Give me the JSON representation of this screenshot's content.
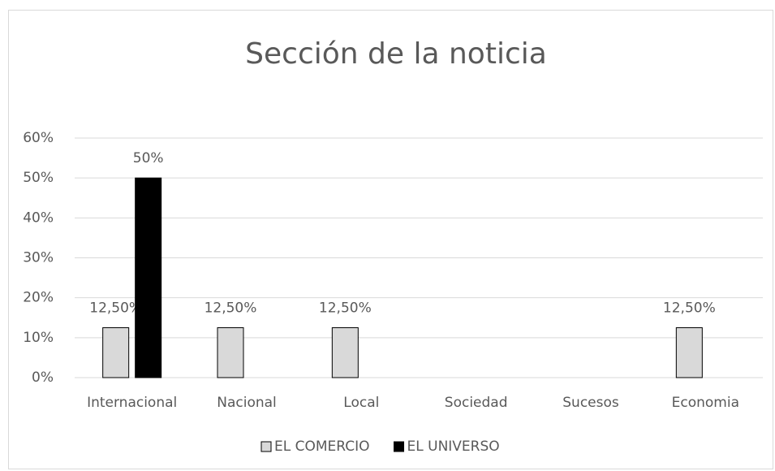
{
  "chart_data": {
    "type": "bar",
    "title": "Sección de la noticia",
    "categories": [
      "Internacional",
      "Nacional",
      "Local",
      "Sociedad",
      "Sucesos",
      "Economia"
    ],
    "series": [
      {
        "name": "EL COMERCIO",
        "color": "#d9d9d9",
        "values": [
          12.5,
          12.5,
          12.5,
          null,
          null,
          12.5
        ],
        "value_labels": [
          "12,50%",
          "12,50%",
          "12,50%",
          null,
          null,
          "12,50%"
        ]
      },
      {
        "name": "EL UNIVERSO",
        "color": "#000000",
        "values": [
          50,
          null,
          null,
          null,
          null,
          null
        ],
        "value_labels": [
          "50%",
          null,
          null,
          null,
          null,
          null
        ]
      }
    ],
    "ylim": [
      0,
      60
    ],
    "yticks": [
      {
        "value": 0,
        "label": "0%"
      },
      {
        "value": 10,
        "label": "10%"
      },
      {
        "value": 20,
        "label": "20%"
      },
      {
        "value": 30,
        "label": "30%"
      },
      {
        "value": 40,
        "label": "40%"
      },
      {
        "value": 50,
        "label": "50%"
      },
      {
        "value": 60,
        "label": "60%"
      }
    ],
    "grid": true,
    "legend": "bottom"
  }
}
